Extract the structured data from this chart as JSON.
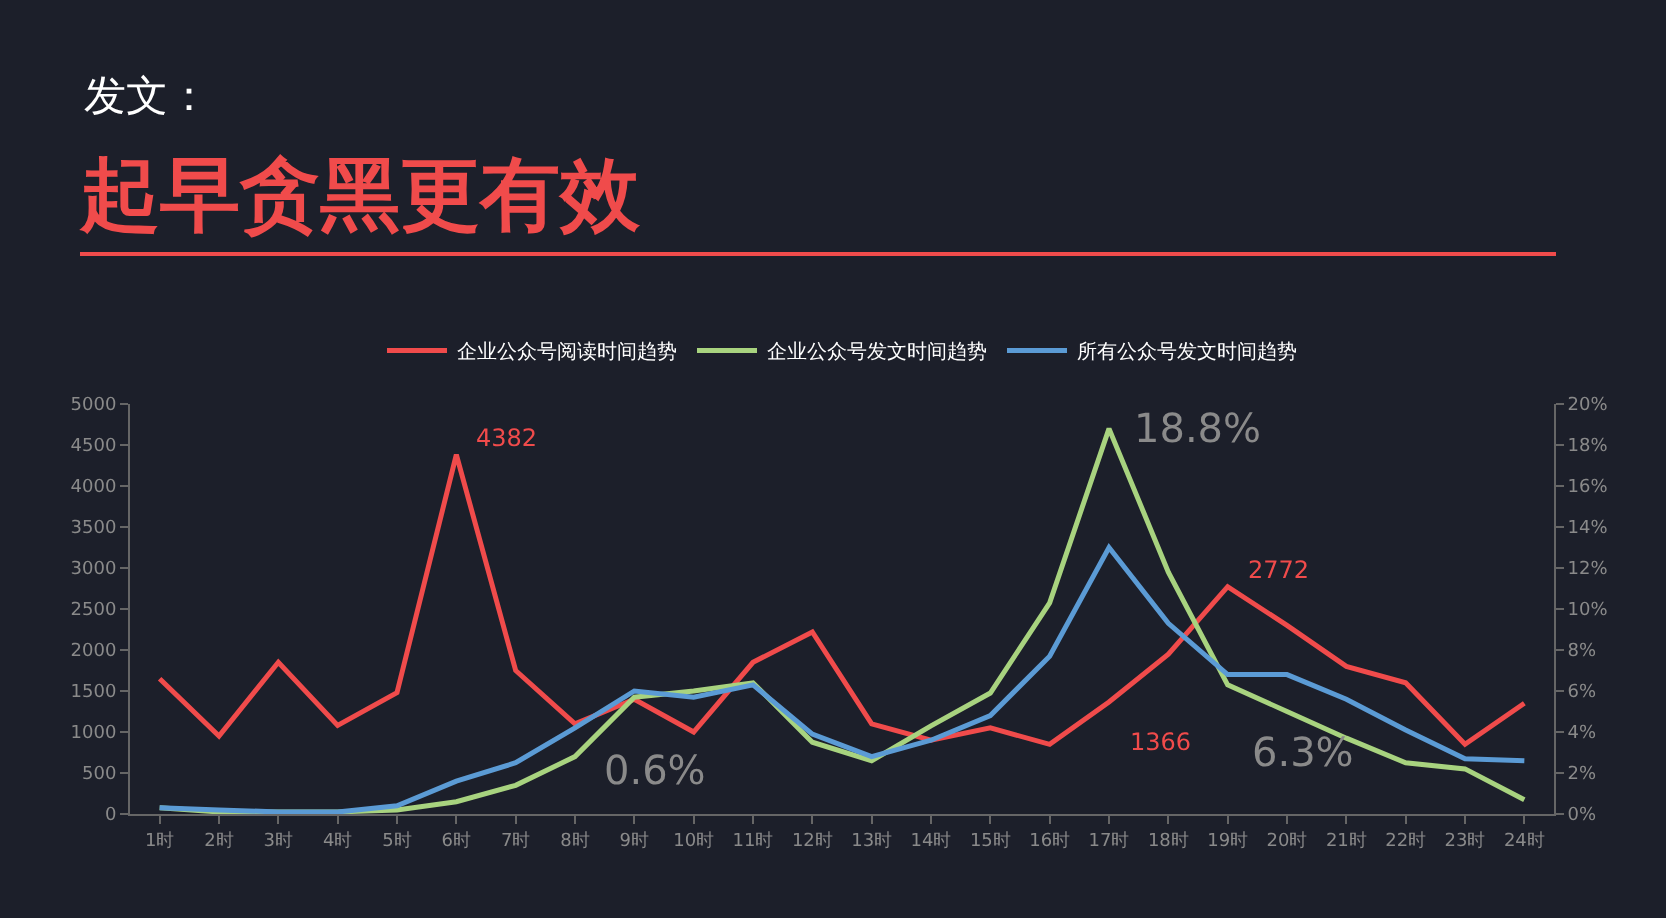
{
  "chart_data": {
    "type": "line",
    "subtitle": "发文：",
    "title": "起早贪黑更有效",
    "categories": [
      "1时",
      "2时",
      "3时",
      "4时",
      "5时",
      "6时",
      "7时",
      "8时",
      "9时",
      "10时",
      "11时",
      "12时",
      "13时",
      "14时",
      "15时",
      "16时",
      "17时",
      "18时",
      "19时",
      "20时",
      "21时",
      "22时",
      "23时",
      "24时"
    ],
    "series": [
      {
        "name": "企业公众号阅读时间趋势",
        "color": "#f04b4b",
        "values": [
          1650,
          950,
          1850,
          1080,
          1480,
          4382,
          1750,
          1100,
          1400,
          1000,
          1850,
          2220,
          1100,
          900,
          1050,
          850,
          1366,
          1950,
          2772,
          2300,
          1800,
          1600,
          850,
          1350
        ],
        "value_labels": [
          null,
          null,
          null,
          null,
          null,
          "4382",
          null,
          null,
          null,
          null,
          null,
          null,
          null,
          null,
          null,
          null,
          "1366",
          null,
          "2772",
          null,
          null,
          null,
          null,
          null
        ]
      },
      {
        "name": "企业公众号发文时间趋势",
        "color": "#a8d37f",
        "axis": "y2",
        "values": [
          0.3,
          0.1,
          0.1,
          0.1,
          0.2,
          0.6,
          1.4,
          2.8,
          5.7,
          6.0,
          6.4,
          3.5,
          2.6,
          4.3,
          5.9,
          10.3,
          18.8,
          11.8,
          6.3,
          5.0,
          3.7,
          2.5,
          2.2,
          0.7
        ],
        "value_labels": [
          null,
          null,
          null,
          null,
          null,
          null,
          null,
          null,
          null,
          null,
          null,
          null,
          null,
          null,
          null,
          null,
          "18.8%",
          null,
          "6.3%",
          null,
          null,
          null,
          null,
          null
        ]
      },
      {
        "name": "所有公众号发文时间趋势",
        "color": "#5b9bd5",
        "axis": "y2",
        "values": [
          0.3,
          0.2,
          0.1,
          0.1,
          0.4,
          1.6,
          2.5,
          4.2,
          6.0,
          5.7,
          6.3,
          3.9,
          2.8,
          3.6,
          4.8,
          7.7,
          13.0,
          9.3,
          6.8,
          6.8,
          5.6,
          4.1,
          2.7,
          2.6
        ]
      }
    ],
    "annotations": [
      "0.6%"
    ],
    "ylim": [
      0,
      5000
    ],
    "yticks": [
      0,
      500,
      1000,
      1500,
      2000,
      2500,
      3000,
      3500,
      4000,
      4500,
      5000
    ],
    "y2lim": [
      0,
      20
    ],
    "y2ticks": [
      {
        "value": 0,
        "label": "0%"
      },
      {
        "value": 2,
        "label": "2%"
      },
      {
        "value": 4,
        "label": "4%"
      },
      {
        "value": 6,
        "label": "6%"
      },
      {
        "value": 8,
        "label": "8%"
      },
      {
        "value": 10,
        "label": "10%"
      },
      {
        "value": 12,
        "label": "12%"
      },
      {
        "value": 14,
        "label": "14%"
      },
      {
        "value": 16,
        "label": "16%"
      },
      {
        "value": 18,
        "label": "18%"
      },
      {
        "value": 20,
        "label": "20%"
      }
    ],
    "grid": false,
    "legend": "top",
    "marker": "none",
    "line_style": "solid"
  }
}
